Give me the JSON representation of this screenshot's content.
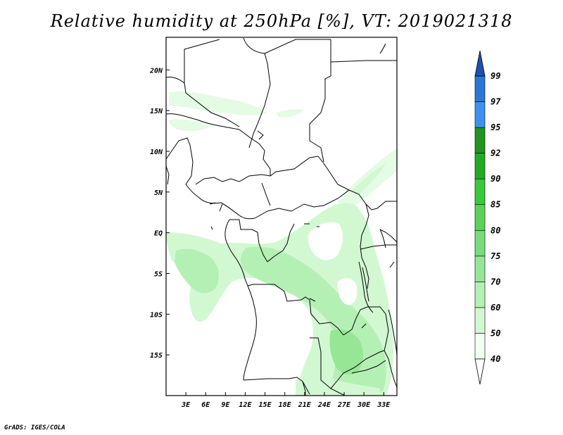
{
  "title": "Relative humidity at 250hPa [%], VT: 2019021318",
  "credit": "GrADS: IGES/COLA",
  "map": {
    "lon_range": [
      0,
      35
    ],
    "lat_range": [
      -20,
      24
    ],
    "lon_ticks": [
      "3E",
      "6E",
      "9E",
      "12E",
      "15E",
      "18E",
      "21E",
      "24E",
      "27E",
      "30E",
      "33E"
    ],
    "lat_ticks": [
      "20N",
      "15N",
      "10N",
      "5N",
      "EQ",
      "5S",
      "10S",
      "15S"
    ],
    "lon_values": [
      3,
      6,
      9,
      12,
      15,
      18,
      21,
      24,
      27,
      30,
      33
    ],
    "lat_values": [
      20,
      15,
      10,
      5,
      0,
      -5,
      -10,
      -15
    ],
    "land_background": "#ffffff",
    "boundary_color": "#000000"
  },
  "colorbar": {
    "labels": [
      "40",
      "50",
      "60",
      "70",
      "75",
      "80",
      "85",
      "90",
      "92",
      "95",
      "97",
      "99"
    ],
    "segment_colors": [
      "#f0fff0",
      "#d2f8d2",
      "#b4f0b4",
      "#96e696",
      "#78dc78",
      "#5ad25a",
      "#3cc83c",
      "#23aa23",
      "#1e961e",
      "#3c91f0",
      "#2878d7",
      "#1e64c3"
    ],
    "under_color": "#ffffff",
    "over_color": "#1e50b4"
  }
}
